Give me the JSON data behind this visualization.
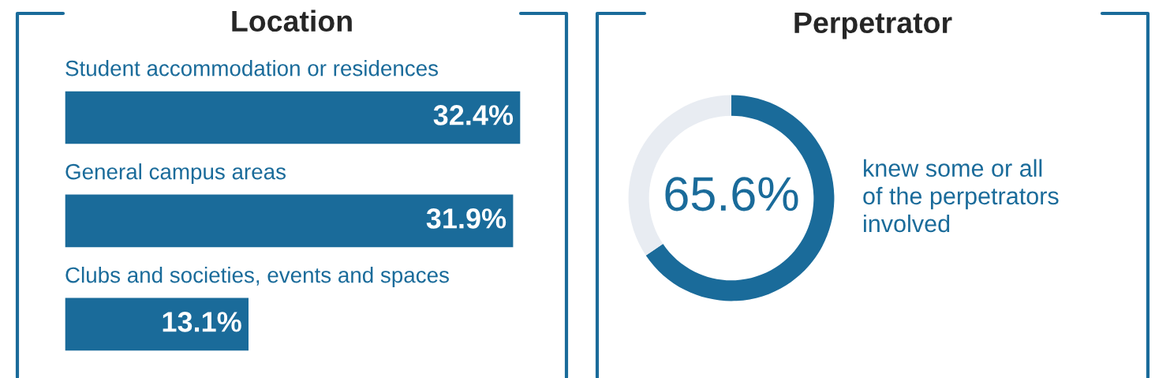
{
  "chart_data": [
    {
      "type": "bar",
      "orientation": "horizontal",
      "title": "Location",
      "categories": [
        "Student accommodation or residences",
        "General campus areas",
        "Clubs and societies, events and spaces"
      ],
      "values": [
        32.4,
        31.9,
        13.1
      ],
      "color": "#1a6b9a",
      "value_labels": [
        "32.4%",
        "31.9%",
        "13.1%"
      ]
    },
    {
      "type": "donut",
      "title": "Perpetrator",
      "categories": [
        null,
        null
      ],
      "values": [
        65.6,
        34.4
      ],
      "colors": [
        "#1a6b9a",
        "#e8ecf2"
      ],
      "value_labels": [
        "65.6%",
        null
      ],
      "annotations": [
        "knew some or all\nof the perpetrators\ninvolved"
      ]
    }
  ]
}
